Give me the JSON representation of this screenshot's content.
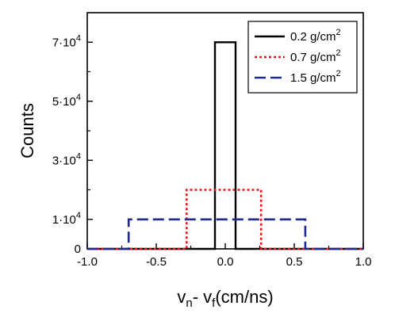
{
  "chart_data": {
    "type": "line",
    "xlabel_parts": {
      "v": "v",
      "n": "n",
      "dash": "- v",
      "f": "f",
      "unit": "(cm/ns)"
    },
    "ylabel": "Counts",
    "xlim": [
      -1.0,
      1.0
    ],
    "ylim": [
      0,
      80000
    ],
    "xticks": [
      {
        "value": -1.0,
        "label": "-1.0"
      },
      {
        "value": -0.5,
        "label": "-0.5"
      },
      {
        "value": 0.0,
        "label": "0.0"
      },
      {
        "value": 0.5,
        "label": "0.5"
      },
      {
        "value": 1.0,
        "label": "1.0"
      }
    ],
    "yticks": [
      {
        "value": 0,
        "mant": "0",
        "exp": ""
      },
      {
        "value": 10000,
        "mant": "1·10",
        "exp": "4"
      },
      {
        "value": 30000,
        "mant": "3·10",
        "exp": "4"
      },
      {
        "value": 50000,
        "mant": "5·10",
        "exp": "4"
      },
      {
        "value": 70000,
        "mant": "7·10",
        "exp": "4"
      }
    ],
    "yminor": [
      20000,
      40000,
      60000
    ],
    "grid": false,
    "legend_position": "top-right",
    "series": [
      {
        "name": "0.2 g/cm",
        "name_sup": "2",
        "color": "#000000",
        "dash": "solid",
        "points": [
          [
            -1.0,
            0
          ],
          [
            -0.075,
            0
          ],
          [
            -0.075,
            70000
          ],
          [
            0.075,
            70000
          ],
          [
            0.075,
            0
          ],
          [
            1.0,
            0
          ]
        ]
      },
      {
        "name": "0.7 g/cm",
        "name_sup": "2",
        "color": "#e8141b",
        "dash": "dotted",
        "points": [
          [
            -1.0,
            0
          ],
          [
            -0.28,
            0
          ],
          [
            -0.28,
            20000
          ],
          [
            0.26,
            20000
          ],
          [
            0.26,
            0
          ],
          [
            1.0,
            0
          ]
        ]
      },
      {
        "name": "1.5 g/cm",
        "name_sup": "2",
        "color": "#1f2a8c",
        "dash": "dashed",
        "points": [
          [
            -1.0,
            0
          ],
          [
            -0.7,
            0
          ],
          [
            -0.7,
            10000
          ],
          [
            0.58,
            10000
          ],
          [
            0.58,
            0
          ],
          [
            1.0,
            0
          ]
        ]
      }
    ]
  }
}
